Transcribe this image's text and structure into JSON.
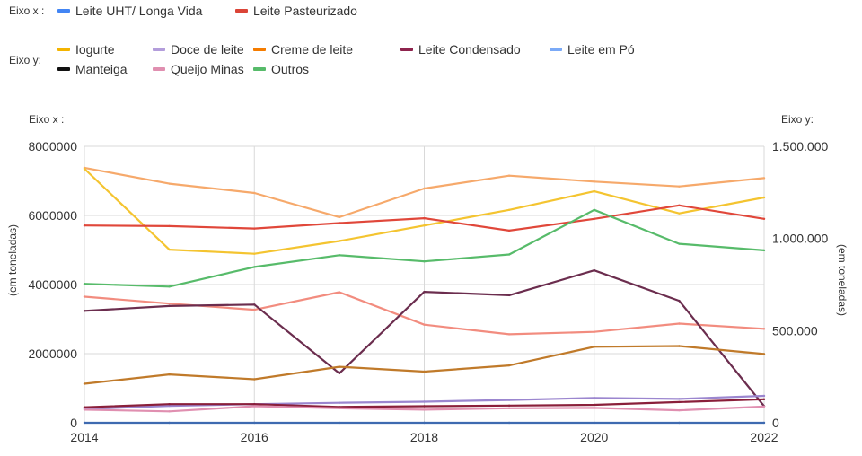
{
  "legend": {
    "left_group_label": "Eixo x :",
    "right_group_label": "Eixo y:",
    "left_items": [
      {
        "label": "Leite UHT/ Longa Vida",
        "color": "#4285f4"
      },
      {
        "label": "Leite Pasteurizado",
        "color": "#db4437"
      }
    ],
    "right_items": [
      {
        "label": "Iogurte",
        "color": "#f4b400"
      },
      {
        "label": "Doce de leite",
        "color": "#b39ddb"
      },
      {
        "label": "Creme de leite",
        "color": "#f57c00"
      },
      {
        "label": "Leite Condensado",
        "color": "#8e244d"
      },
      {
        "label": "Leite em Pó",
        "color": "#7baaf7"
      },
      {
        "label": "Manteiga",
        "color": "#111111"
      },
      {
        "label": "Queijo Minas",
        "color": "#e08fb0"
      },
      {
        "label": "Outros",
        "color": "#57bb6a"
      }
    ]
  },
  "chart_data": {
    "type": "line",
    "title": "",
    "x": [
      2014,
      2015,
      2016,
      2017,
      2018,
      2019,
      2020,
      2021,
      2022
    ],
    "x_ticks": [
      "2014",
      "2016",
      "2018",
      "2020",
      "2022"
    ],
    "left_axis": {
      "title": "Eixo x :",
      "label": "(em toneladas)",
      "range": [
        0,
        8000000
      ],
      "ticks": [
        "0",
        "2000000",
        "4000000",
        "6000000",
        "8000000"
      ]
    },
    "right_axis": {
      "title": "Eixo y:",
      "label": "(em toneladas)",
      "range": [
        0,
        1500000
      ],
      "ticks": [
        "0",
        "500.000",
        "1.000.000",
        "1.500.000"
      ]
    },
    "grid": true,
    "series": [
      {
        "color": "#f6a96b",
        "axis": "left",
        "values": [
          7380000,
          6920000,
          6650000,
          5950000,
          6780000,
          7150000,
          6980000,
          6840000,
          7080000
        ]
      },
      {
        "color": "#f4c430",
        "axis": "left",
        "values": [
          7350000,
          5010000,
          4890000,
          5260000,
          5710000,
          6160000,
          6700000,
          6060000,
          6520000
        ]
      },
      {
        "color": "#e0473a",
        "axis": "left",
        "values": [
          5710000,
          5690000,
          5620000,
          5780000,
          5920000,
          5560000,
          5900000,
          6290000,
          5900000
        ]
      },
      {
        "color": "#57bb6a",
        "axis": "left",
        "values": [
          4020000,
          3940000,
          4510000,
          4850000,
          4670000,
          4870000,
          6160000,
          5180000,
          4990000
        ]
      },
      {
        "color": "#f28c7f",
        "axis": "left",
        "values": [
          3650000,
          3450000,
          3270000,
          3780000,
          2840000,
          2560000,
          2630000,
          2870000,
          2720000
        ]
      },
      {
        "color": "#6b2d4e",
        "axis": "left",
        "values": [
          3240000,
          3380000,
          3420000,
          1430000,
          3790000,
          3690000,
          4410000,
          3530000,
          480000
        ]
      },
      {
        "color": "#c07a2a",
        "axis": "left",
        "values": [
          1130000,
          1400000,
          1260000,
          1620000,
          1480000,
          1660000,
          2200000,
          2220000,
          1990000
        ]
      },
      {
        "color": "#9b86cf",
        "axis": "left",
        "values": [
          400000,
          490000,
          540000,
          580000,
          610000,
          660000,
          720000,
          690000,
          780000
        ]
      },
      {
        "color": "#8a1f3a",
        "axis": "left",
        "values": [
          450000,
          540000,
          540000,
          460000,
          480000,
          500000,
          520000,
          600000,
          680000
        ]
      },
      {
        "color": "#e08fb0",
        "axis": "left",
        "values": [
          380000,
          330000,
          480000,
          420000,
          380000,
          420000,
          430000,
          360000,
          470000
        ]
      },
      {
        "color": "#3e6ab0",
        "axis": "left",
        "values": [
          0,
          0,
          0,
          0,
          0,
          0,
          0,
          0,
          0
        ]
      }
    ]
  }
}
